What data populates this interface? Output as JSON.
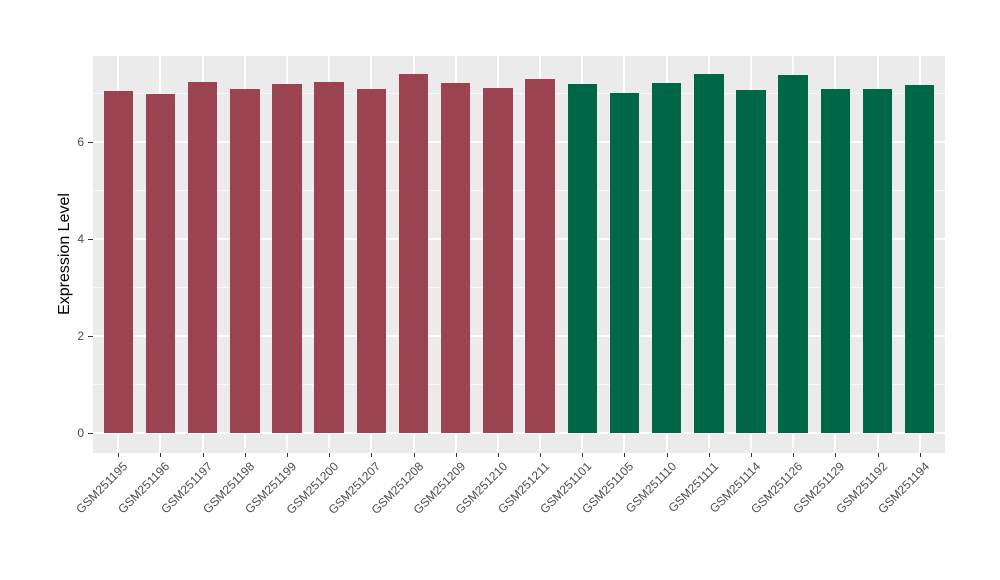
{
  "figure": {
    "background": "#FFFFFF",
    "panel_background": "#EBEBEB",
    "gridline_color": "#FFFFFF",
    "tick_mark_color": "#333333",
    "axis_text_color": "#4D4D4D",
    "axis_title_color": "#000000"
  },
  "chart_data": {
    "type": "bar",
    "title": "",
    "xlabel": "",
    "ylabel": "Expression Level",
    "grid": true,
    "legend_position": "none",
    "yticks": [
      0,
      2,
      4,
      6
    ],
    "minor_yticks": [
      1,
      3,
      5,
      7
    ],
    "axis_range": [
      -0.41,
      7.77
    ],
    "ylim": [
      0,
      7.77
    ],
    "categories": [
      "GSM251195",
      "GSM251196",
      "GSM251197",
      "GSM251198",
      "GSM251199",
      "GSM251200",
      "GSM251207",
      "GSM251208",
      "GSM251209",
      "GSM251210",
      "GSM251211",
      "GSM251101",
      "GSM251105",
      "GSM251110",
      "GSM251111",
      "GSM251114",
      "GSM251126",
      "GSM251129",
      "GSM251192",
      "GSM251194"
    ],
    "values": [
      7.04,
      6.98,
      7.23,
      7.08,
      7.19,
      7.23,
      7.08,
      7.39,
      7.22,
      7.11,
      7.3,
      7.19,
      7.01,
      7.21,
      7.39,
      7.06,
      7.37,
      7.08,
      7.08,
      7.17
    ],
    "bar_colors": [
      "#9C4352",
      "#9C4352",
      "#9C4352",
      "#9C4352",
      "#9C4352",
      "#9C4352",
      "#9C4352",
      "#9C4352",
      "#9C4352",
      "#9C4352",
      "#9C4352",
      "#006746",
      "#006746",
      "#006746",
      "#006746",
      "#006746",
      "#006746",
      "#006746",
      "#006746",
      "#006746"
    ],
    "group_colors": {
      "maroon_group": "#9C4352",
      "green_group": "#006746"
    }
  }
}
